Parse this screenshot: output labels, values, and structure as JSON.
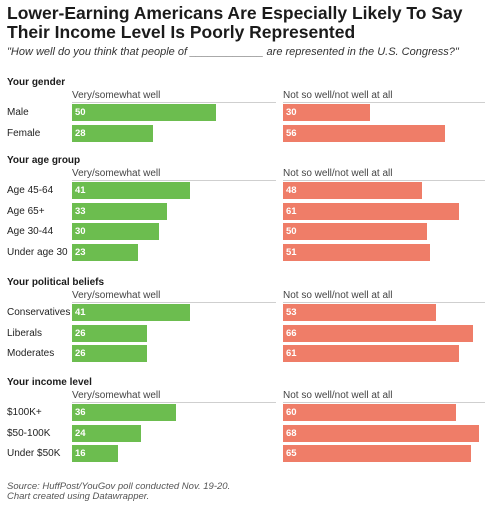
{
  "title": "Lower-Earning Americans Are Especially Likely To Say Their Income Level Is Poorly Represented",
  "subtitle": "\"How well do you think that people of ____________ are represented in the U.S. Congress?\"",
  "source_line1": "Source: HuffPost/YouGov poll conducted Nov. 19-20.",
  "source_line2": "Chart created using Datawrapper.",
  "colors": {
    "well": "#6cbd4f",
    "not_well": "#ef7d68"
  },
  "chart_data": {
    "type": "bar",
    "orientation": "horizontal",
    "scale_max": 70,
    "columns": [
      "Very/somewhat well",
      "Not so well/not well at all"
    ],
    "groups": [
      {
        "name": "Your gender",
        "rows": [
          {
            "label": "Male",
            "well": 50,
            "not_well": 30
          },
          {
            "label": "Female",
            "well": 28,
            "not_well": 56
          }
        ]
      },
      {
        "name": "Your age group",
        "rows": [
          {
            "label": "Age 45-64",
            "well": 41,
            "not_well": 48
          },
          {
            "label": "Age 65+",
            "well": 33,
            "not_well": 61
          },
          {
            "label": "Age 30-44",
            "well": 30,
            "not_well": 50
          },
          {
            "label": "Under age 30",
            "well": 23,
            "not_well": 51
          }
        ]
      },
      {
        "name": "Your political beliefs",
        "rows": [
          {
            "label": "Conservatives",
            "well": 41,
            "not_well": 53
          },
          {
            "label": "Liberals",
            "well": 26,
            "not_well": 66
          },
          {
            "label": "Moderates",
            "well": 26,
            "not_well": 61
          }
        ]
      },
      {
        "name": "Your income level",
        "rows": [
          {
            "label": "$100K+",
            "well": 36,
            "not_well": 60
          },
          {
            "label": "$50-100K",
            "well": 24,
            "not_well": 68
          },
          {
            "label": "Under $50K",
            "well": 16,
            "not_well": 65
          }
        ]
      }
    ]
  }
}
